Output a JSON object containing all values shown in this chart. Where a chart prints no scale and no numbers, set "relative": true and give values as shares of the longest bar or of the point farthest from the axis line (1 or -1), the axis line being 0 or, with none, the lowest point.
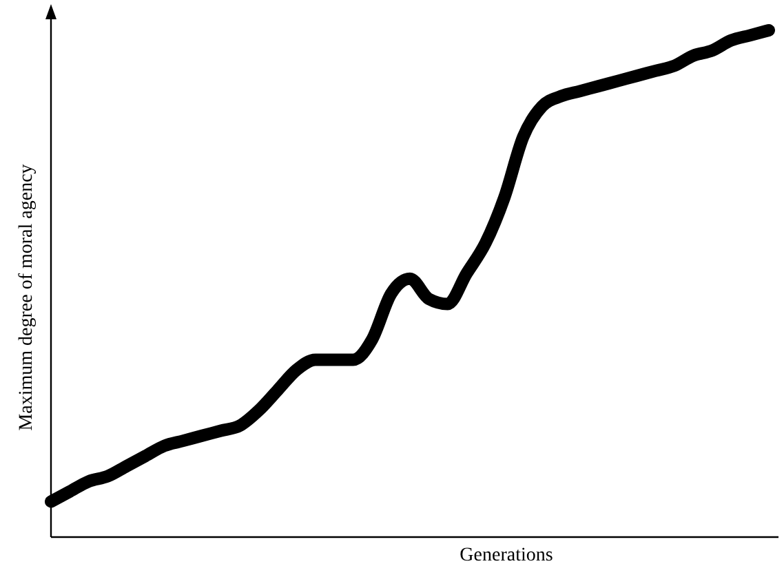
{
  "chart_data": {
    "type": "line",
    "relative": true,
    "xlabel": "Generations",
    "ylabel": "Maximum degree of moral agency",
    "categories": [
      null,
      null,
      null,
      null,
      null,
      null,
      null,
      null,
      null,
      null,
      null,
      null,
      null,
      null,
      null,
      null,
      null,
      null,
      null,
      null,
      null,
      null,
      null,
      null,
      null,
      null,
      null,
      null,
      null,
      null,
      null,
      null,
      null,
      null,
      null,
      null,
      null,
      null,
      null
    ],
    "series": [
      {
        "color": "#000000",
        "values": [
          0.07,
          0.09,
          0.11,
          0.12,
          0.14,
          0.16,
          0.18,
          0.19,
          0.2,
          0.21,
          0.22,
          0.25,
          0.29,
          0.33,
          0.35,
          0.35,
          0.35,
          0.39,
          0.48,
          0.51,
          0.47,
          0.46,
          0.52,
          0.58,
          0.67,
          0.79,
          0.85,
          0.87,
          0.88,
          0.89,
          0.9,
          0.91,
          0.92,
          0.93,
          0.95,
          0.96,
          0.98,
          0.99,
          1
        ]
      }
    ],
    "marker": "none",
    "line_style": "solid"
  }
}
